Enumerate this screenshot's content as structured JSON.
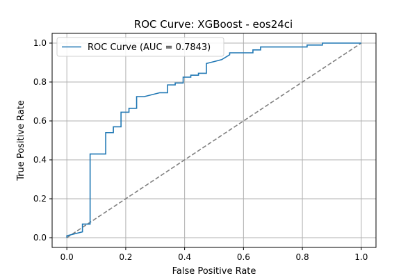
{
  "chart_data": {
    "type": "line",
    "title": "ROC Curve: XGBoost - eos24ci",
    "xlabel": "False Positive Rate",
    "ylabel": "True Positive Rate",
    "xlim": [
      -0.05,
      1.05
    ],
    "ylim": [
      -0.05,
      1.05
    ],
    "xticks": [
      0.0,
      0.2,
      0.4,
      0.6,
      0.8,
      1.0
    ],
    "yticks": [
      0.0,
      0.2,
      0.4,
      0.6,
      0.8,
      1.0
    ],
    "xtick_labels": [
      "0.0",
      "0.2",
      "0.4",
      "0.6",
      "0.8",
      "1.0"
    ],
    "ytick_labels": [
      "0.0",
      "0.2",
      "0.4",
      "0.6",
      "0.8",
      "1.0"
    ],
    "grid": true,
    "legend_position": "top-left",
    "series": [
      {
        "name": "ROC Curve (AUC = 0.7843)",
        "color": "#1f77b4",
        "style": "solid",
        "x": [
          0.0,
          0.0,
          0.053,
          0.053,
          0.079,
          0.079,
          0.132,
          0.132,
          0.158,
          0.158,
          0.184,
          0.184,
          0.211,
          0.211,
          0.237,
          0.237,
          0.263,
          0.316,
          0.342,
          0.342,
          0.368,
          0.368,
          0.395,
          0.395,
          0.421,
          0.421,
          0.447,
          0.447,
          0.474,
          0.474,
          0.5,
          0.526,
          0.526,
          0.553,
          0.553,
          0.605,
          0.632,
          0.632,
          0.658,
          0.658,
          0.684,
          0.789,
          0.816,
          0.816,
          0.868,
          0.868,
          1.0
        ],
        "y": [
          0.0,
          0.01,
          0.03,
          0.07,
          0.07,
          0.43,
          0.43,
          0.54,
          0.54,
          0.57,
          0.57,
          0.645,
          0.645,
          0.665,
          0.665,
          0.725,
          0.725,
          0.745,
          0.745,
          0.785,
          0.785,
          0.795,
          0.795,
          0.825,
          0.825,
          0.835,
          0.835,
          0.845,
          0.845,
          0.895,
          0.905,
          0.915,
          0.915,
          0.94,
          0.95,
          0.95,
          0.95,
          0.965,
          0.965,
          0.98,
          0.98,
          0.98,
          0.98,
          0.99,
          0.99,
          1.0,
          1.0
        ]
      },
      {
        "name": "",
        "color": "#808080",
        "style": "dashed",
        "x": [
          0.0,
          1.0
        ],
        "y": [
          0.0,
          1.0
        ]
      }
    ]
  }
}
